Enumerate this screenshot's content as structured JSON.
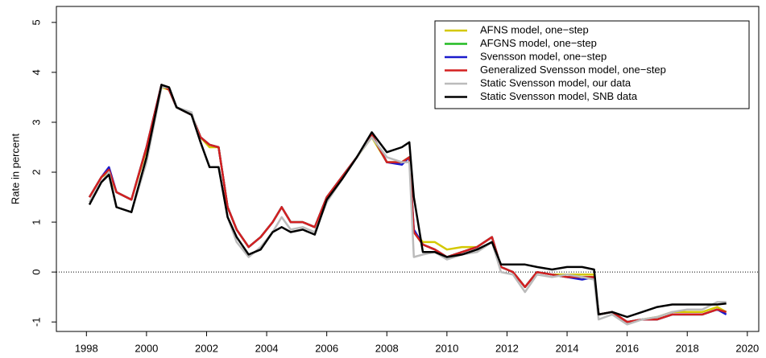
{
  "chart_data": {
    "type": "line",
    "y_label": "Rate in percent",
    "xlim": [
      1997.0,
      2020.38
    ],
    "ylim": [
      -1.19,
      5.32
    ],
    "xticks": [
      1998,
      2000,
      2002,
      2004,
      2006,
      2008,
      2010,
      2012,
      2014,
      2016,
      2018,
      2020
    ],
    "yticks": [
      -1,
      0,
      1,
      2,
      3,
      4,
      5
    ],
    "reference_line": 0,
    "legend": "top-right",
    "x": [
      1998.1,
      1998.5,
      1998.75,
      1999.0,
      1999.5,
      2000.0,
      2000.5,
      2000.75,
      2001.0,
      2001.5,
      2001.8,
      2002.1,
      2002.4,
      2002.7,
      2003.0,
      2003.4,
      2003.8,
      2004.2,
      2004.5,
      2004.8,
      2005.2,
      2005.6,
      2006.0,
      2006.5,
      2007.0,
      2007.5,
      2008.0,
      2008.5,
      2008.75,
      2008.9,
      2009.2,
      2009.6,
      2010.0,
      2010.5,
      2011.0,
      2011.5,
      2011.8,
      2012.2,
      2012.6,
      2013.0,
      2013.5,
      2014.0,
      2014.5,
      2014.9,
      2015.05,
      2015.5,
      2016.0,
      2016.5,
      2017.0,
      2017.5,
      2018.0,
      2018.5,
      2019.0,
      2019.3
    ],
    "series": [
      {
        "name": "AFNS model, one−step",
        "color": "#d4c800",
        "values": [
          1.5,
          1.9,
          2.0,
          1.6,
          1.45,
          2.45,
          3.7,
          3.65,
          3.3,
          3.15,
          2.7,
          2.5,
          2.5,
          1.3,
          0.85,
          0.5,
          0.7,
          1.0,
          1.3,
          1.0,
          1.0,
          0.9,
          1.5,
          1.9,
          2.3,
          2.7,
          2.2,
          2.2,
          2.3,
          0.8,
          0.6,
          0.6,
          0.45,
          0.5,
          0.5,
          0.7,
          0.1,
          0.0,
          -0.3,
          0.0,
          -0.05,
          -0.05,
          -0.05,
          -0.05,
          -0.85,
          -0.8,
          -1.0,
          -0.95,
          -0.9,
          -0.8,
          -0.8,
          -0.8,
          -0.7,
          -0.8
        ]
      },
      {
        "name": "AFGNS model, one−step",
        "color": "#22bb22",
        "values": [
          1.5,
          1.9,
          2.05,
          1.6,
          1.45,
          2.5,
          3.75,
          3.65,
          3.3,
          3.15,
          2.7,
          2.55,
          2.5,
          1.3,
          0.85,
          0.5,
          0.7,
          1.0,
          1.3,
          1.0,
          1.0,
          0.9,
          1.5,
          1.9,
          2.3,
          2.75,
          2.2,
          2.2,
          2.3,
          0.8,
          0.55,
          0.45,
          0.3,
          0.4,
          0.5,
          0.7,
          0.1,
          0.0,
          -0.3,
          0.0,
          -0.05,
          -0.1,
          -0.1,
          -0.1,
          -0.85,
          -0.8,
          -1.0,
          -0.95,
          -0.95,
          -0.85,
          -0.85,
          -0.85,
          -0.75,
          -0.8
        ]
      },
      {
        "name": "Svensson model, one−step",
        "color": "#1a1acc",
        "values": [
          1.5,
          1.9,
          2.1,
          1.6,
          1.45,
          2.5,
          3.75,
          3.65,
          3.3,
          3.15,
          2.7,
          2.55,
          2.5,
          1.3,
          0.85,
          0.5,
          0.7,
          1.0,
          1.3,
          1.0,
          1.0,
          0.9,
          1.5,
          1.9,
          2.3,
          2.75,
          2.2,
          2.15,
          2.3,
          0.85,
          0.55,
          0.45,
          0.3,
          0.4,
          0.5,
          0.7,
          0.1,
          0.0,
          -0.3,
          0.0,
          -0.05,
          -0.1,
          -0.15,
          -0.1,
          -0.85,
          -0.8,
          -1.0,
          -0.95,
          -0.95,
          -0.85,
          -0.85,
          -0.85,
          -0.75,
          -0.85
        ]
      },
      {
        "name": "Generalized Svensson model, one−step",
        "color": "#d42020",
        "values": [
          1.5,
          1.9,
          2.05,
          1.6,
          1.45,
          2.5,
          3.75,
          3.65,
          3.3,
          3.15,
          2.7,
          2.55,
          2.5,
          1.3,
          0.85,
          0.5,
          0.7,
          1.0,
          1.3,
          1.0,
          1.0,
          0.9,
          1.5,
          1.9,
          2.3,
          2.75,
          2.2,
          2.2,
          2.3,
          0.8,
          0.55,
          0.45,
          0.3,
          0.4,
          0.5,
          0.7,
          0.1,
          0.0,
          -0.3,
          0.0,
          -0.05,
          -0.1,
          -0.1,
          -0.1,
          -0.85,
          -0.8,
          -1.0,
          -0.95,
          -0.95,
          -0.85,
          -0.85,
          -0.85,
          -0.75,
          -0.8
        ]
      },
      {
        "name": "Static Svensson model, our data",
        "color": "#bbbbbb",
        "values": [
          1.4,
          1.8,
          2.0,
          1.3,
          1.2,
          2.2,
          3.7,
          3.7,
          3.3,
          3.2,
          2.6,
          2.1,
          2.1,
          1.1,
          0.6,
          0.3,
          0.5,
          0.8,
          1.1,
          0.85,
          0.9,
          0.8,
          1.4,
          1.85,
          2.3,
          2.7,
          2.3,
          2.2,
          2.2,
          0.3,
          0.35,
          0.4,
          0.25,
          0.35,
          0.4,
          0.6,
          0.0,
          -0.05,
          -0.4,
          -0.05,
          -0.1,
          -0.05,
          -0.1,
          -0.15,
          -0.95,
          -0.85,
          -1.05,
          -0.95,
          -0.9,
          -0.8,
          -0.75,
          -0.75,
          -0.6,
          -0.6
        ]
      },
      {
        "name": "Static Svensson model, SNB data",
        "color": "#000000",
        "values": [
          1.35,
          1.8,
          1.95,
          1.3,
          1.2,
          2.3,
          3.75,
          3.7,
          3.3,
          3.15,
          2.6,
          2.1,
          2.1,
          1.1,
          0.7,
          0.35,
          0.45,
          0.8,
          0.9,
          0.8,
          0.85,
          0.75,
          1.45,
          1.85,
          2.3,
          2.8,
          2.4,
          2.5,
          2.6,
          1.5,
          0.4,
          0.4,
          0.3,
          0.35,
          0.45,
          0.6,
          0.15,
          0.15,
          0.15,
          0.1,
          0.05,
          0.1,
          0.1,
          0.05,
          -0.85,
          -0.8,
          -0.9,
          -0.8,
          -0.7,
          -0.65,
          -0.65,
          -0.65,
          -0.65,
          -0.63
        ]
      }
    ]
  }
}
